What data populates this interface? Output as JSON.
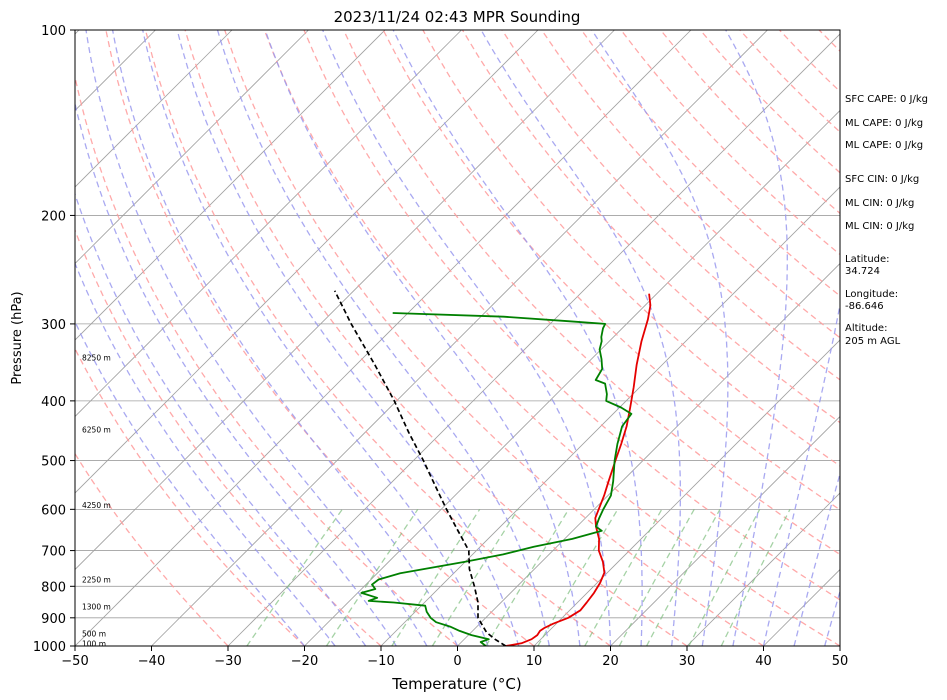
{
  "chart_data": {
    "type": "line",
    "title": "2023/11/24 02:43 MPR Sounding",
    "xlabel": "Temperature (°C)",
    "ylabel": "Pressure (hPa)",
    "xlim": [
      -50,
      50
    ],
    "ylim": [
      1000,
      100
    ],
    "y_scale": "log",
    "grid": true,
    "x_ticks": [
      -50,
      -40,
      -30,
      -20,
      -10,
      0,
      10,
      20,
      30,
      40,
      50
    ],
    "y_ticks": [
      100,
      200,
      300,
      400,
      500,
      600,
      700,
      800,
      900,
      1000
    ],
    "series": [
      {
        "role": "temperature",
        "color": "#e50000",
        "points": [
          {
            "p": 1000,
            "t": 6.3
          },
          {
            "p": 990,
            "t": 8.0
          },
          {
            "p": 975,
            "t": 8.8
          },
          {
            "p": 960,
            "t": 9.0
          },
          {
            "p": 945,
            "t": 8.8
          },
          {
            "p": 935,
            "t": 9.0
          },
          {
            "p": 920,
            "t": 9.6
          },
          {
            "p": 900,
            "t": 10.8
          },
          {
            "p": 875,
            "t": 11.4
          },
          {
            "p": 850,
            "t": 11.2
          },
          {
            "p": 820,
            "t": 10.9
          },
          {
            "p": 790,
            "t": 10.4
          },
          {
            "p": 760,
            "t": 9.6
          },
          {
            "p": 730,
            "t": 8.0
          },
          {
            "p": 700,
            "t": 6.0
          },
          {
            "p": 670,
            "t": 4.5
          },
          {
            "p": 640,
            "t": 2.5
          },
          {
            "p": 620,
            "t": 1.3
          },
          {
            "p": 600,
            "t": 0.6
          },
          {
            "p": 570,
            "t": -0.5
          },
          {
            "p": 540,
            "t": -1.8
          },
          {
            "p": 500,
            "t": -3.6
          },
          {
            "p": 470,
            "t": -5.0
          },
          {
            "p": 440,
            "t": -6.6
          },
          {
            "p": 410,
            "t": -8.6
          },
          {
            "p": 380,
            "t": -10.8
          },
          {
            "p": 350,
            "t": -13.3
          },
          {
            "p": 320,
            "t": -15.8
          },
          {
            "p": 295,
            "t": -17.8
          },
          {
            "p": 280,
            "t": -19.3
          },
          {
            "p": 268,
            "t": -21.0
          }
        ]
      },
      {
        "role": "dewpoint",
        "color": "#008000",
        "points": [
          {
            "p": 1000,
            "t": 3.7
          },
          {
            "p": 985,
            "t": 2.5
          },
          {
            "p": 975,
            "t": 3.2
          },
          {
            "p": 960,
            "t": 0.4
          },
          {
            "p": 945,
            "t": -1.7
          },
          {
            "p": 930,
            "t": -3.5
          },
          {
            "p": 915,
            "t": -5.9
          },
          {
            "p": 900,
            "t": -7.2
          },
          {
            "p": 880,
            "t": -8.5
          },
          {
            "p": 860,
            "t": -9.5
          },
          {
            "p": 850,
            "t": -14.0
          },
          {
            "p": 845,
            "t": -17.5
          },
          {
            "p": 835,
            "t": -16.8
          },
          {
            "p": 820,
            "t": -19.5
          },
          {
            "p": 808,
            "t": -18.2
          },
          {
            "p": 795,
            "t": -19.2
          },
          {
            "p": 780,
            "t": -19.0
          },
          {
            "p": 762,
            "t": -17.0
          },
          {
            "p": 730,
            "t": -10.0
          },
          {
            "p": 710,
            "t": -6.0
          },
          {
            "p": 690,
            "t": -3.0
          },
          {
            "p": 670,
            "t": 1.0
          },
          {
            "p": 650,
            "t": 3.8
          },
          {
            "p": 640,
            "t": 2.5
          },
          {
            "p": 620,
            "t": 1.8
          },
          {
            "p": 600,
            "t": 1.2
          },
          {
            "p": 570,
            "t": 0.4
          },
          {
            "p": 540,
            "t": -1.2
          },
          {
            "p": 500,
            "t": -3.7
          },
          {
            "p": 470,
            "t": -5.5
          },
          {
            "p": 440,
            "t": -7.2
          },
          {
            "p": 420,
            "t": -7.6
          },
          {
            "p": 410,
            "t": -9.8
          },
          {
            "p": 400,
            "t": -12.6
          },
          {
            "p": 390,
            "t": -13.4
          },
          {
            "p": 375,
            "t": -15.0
          },
          {
            "p": 370,
            "t": -16.7
          },
          {
            "p": 355,
            "t": -17.3
          },
          {
            "p": 342,
            "t": -18.7
          },
          {
            "p": 330,
            "t": -20.2
          },
          {
            "p": 320,
            "t": -21.0
          },
          {
            "p": 315,
            "t": -21.6
          },
          {
            "p": 305,
            "t": -22.5
          },
          {
            "p": 300,
            "t": -22.8
          },
          {
            "p": 297,
            "t": -28.0
          },
          {
            "p": 292,
            "t": -37.0
          },
          {
            "p": 288,
            "t": -52.0
          }
        ]
      },
      {
        "role": "parcel-profile",
        "color": "#000000",
        "dashed": true,
        "points": [
          {
            "p": 1000,
            "t": 6.3
          },
          {
            "p": 975,
            "t": 4.0
          },
          {
            "p": 950,
            "t": 2.0
          },
          {
            "p": 900,
            "t": -1.0
          },
          {
            "p": 850,
            "t": -3.0
          },
          {
            "p": 800,
            "t": -5.6
          },
          {
            "p": 750,
            "t": -8.5
          },
          {
            "p": 700,
            "t": -11.0
          },
          {
            "p": 650,
            "t": -15.0
          },
          {
            "p": 600,
            "t": -19.3
          },
          {
            "p": 550,
            "t": -23.8
          },
          {
            "p": 500,
            "t": -28.7
          },
          {
            "p": 450,
            "t": -34.3
          },
          {
            "p": 400,
            "t": -40.3
          },
          {
            "p": 350,
            "t": -47.5
          },
          {
            "p": 300,
            "t": -56.0
          },
          {
            "p": 265,
            "t": -62.5
          }
        ]
      }
    ],
    "height_labels": [
      {
        "p": 990,
        "label": "100 m"
      },
      {
        "p": 955,
        "label": "500 m"
      },
      {
        "p": 862,
        "label": "1300 m"
      },
      {
        "p": 780,
        "label": "2250 m"
      },
      {
        "p": 590,
        "label": "4250 m"
      },
      {
        "p": 445,
        "label": "6250 m"
      },
      {
        "p": 340,
        "label": "8250 m"
      }
    ],
    "annotations": [
      {
        "text": "SFC CAPE: 0 J/kg"
      },
      {
        "text": "ML CAPE: 0 J/kg"
      },
      {
        "text": "ML CAPE: 0 J/kg"
      },
      {
        "text": "SFC CIN: 0 J/kg"
      },
      {
        "text": "ML CIN: 0 J/kg"
      },
      {
        "text": "ML CIN: 0 J/kg"
      },
      {
        "text": "Latitude:"
      },
      {
        "text": "34.724"
      },
      {
        "text": "Longitude:"
      },
      {
        "text": "-86.646"
      },
      {
        "text": "Altitude:"
      },
      {
        "text": "205 m AGL"
      }
    ],
    "reference_colors": {
      "isotherm": "#a0a0a0",
      "dry_adiabat": "#ff9a9a",
      "moist_adiabat": "#9a9aee",
      "mixing_ratio": "#7fbf7f"
    }
  }
}
